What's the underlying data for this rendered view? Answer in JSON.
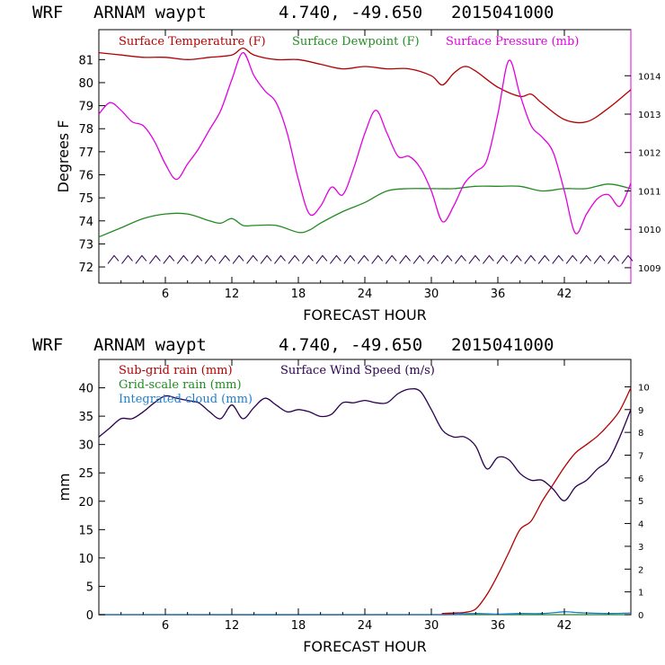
{
  "titles": {
    "top": {
      "model": "WRF",
      "station": "ARNAM waypt",
      "coords": "4.740, -49.650",
      "date": "2015041000"
    },
    "bottom": {
      "model": "WRF",
      "station": "ARNAM waypt",
      "coords": "4.740, -49.650",
      "date": "2015041000"
    }
  },
  "colors": {
    "temperature": "#b30000",
    "dewpoint": "#228b22",
    "pressure": "#e000e0",
    "wind": "#2a0050",
    "wind_barbs": "#2a0050",
    "subgrid": "#b30000",
    "gridscale": "#228b22",
    "cloud": "#1e7fd0"
  },
  "chart_data": [
    {
      "type": "line",
      "xlabel": "FORECAST HOUR",
      "ylabel": "Degrees F",
      "xlim": [
        0,
        48
      ],
      "x_ticks": [
        "6",
        "12",
        "18",
        "24",
        "30",
        "36",
        "42"
      ],
      "ylim": [
        71.3,
        82.3
      ],
      "y_ticks": [
        "72",
        "73",
        "74",
        "75",
        "76",
        "77",
        "78",
        "79",
        "80",
        "81"
      ],
      "y2lim": [
        1008.6,
        1015.2
      ],
      "y2_ticks": [
        "1009",
        "1010",
        "1011",
        "1012",
        "1013",
        "1014"
      ],
      "legend_placement": "top-left",
      "series": [
        {
          "name": "Surface Temperature (F)",
          "axis": "left",
          "color_key": "temperature",
          "x": [
            0,
            2,
            4,
            6,
            8,
            10,
            12,
            13,
            14,
            16,
            18,
            20,
            22,
            24,
            26,
            28,
            30,
            31,
            32,
            33,
            34,
            36,
            38,
            39,
            40,
            42,
            44,
            46,
            48
          ],
          "values": [
            81.3,
            81.2,
            81.1,
            81.1,
            81.0,
            81.1,
            81.2,
            81.5,
            81.2,
            81.0,
            81.0,
            80.8,
            80.6,
            80.7,
            80.6,
            80.6,
            80.3,
            79.9,
            80.4,
            80.7,
            80.5,
            79.8,
            79.4,
            79.5,
            79.1,
            78.4,
            78.3,
            78.9,
            79.7
          ]
        },
        {
          "name": "Surface Dewpoint (F)",
          "axis": "left",
          "color_key": "dewpoint",
          "x": [
            0,
            2,
            4,
            6,
            8,
            10,
            11,
            12,
            13,
            14,
            16,
            18,
            19,
            20,
            22,
            24,
            26,
            28,
            30,
            32,
            34,
            36,
            38,
            40,
            42,
            44,
            46,
            48
          ],
          "values": [
            73.3,
            73.7,
            74.1,
            74.3,
            74.3,
            74.0,
            73.9,
            74.1,
            73.8,
            73.8,
            73.8,
            73.5,
            73.6,
            73.9,
            74.4,
            74.8,
            75.3,
            75.4,
            75.4,
            75.4,
            75.5,
            75.5,
            75.5,
            75.3,
            75.4,
            75.4,
            75.6,
            75.4
          ]
        },
        {
          "name": "Surface Pressure (mb)",
          "axis": "right",
          "color_key": "pressure",
          "x": [
            0,
            1,
            2,
            3,
            4,
            5,
            6,
            7,
            8,
            9,
            10,
            11,
            12,
            13,
            14,
            15,
            16,
            17,
            18,
            19,
            20,
            21,
            22,
            23,
            24,
            25,
            26,
            27,
            28,
            29,
            30,
            31,
            32,
            33,
            34,
            35,
            36,
            37,
            38,
            39,
            40,
            41,
            42,
            43,
            44,
            45,
            46,
            47,
            48
          ],
          "values": [
            1013.0,
            1013.3,
            1013.1,
            1012.8,
            1012.7,
            1012.3,
            1011.7,
            1011.3,
            1011.7,
            1012.1,
            1012.6,
            1013.1,
            1013.9,
            1014.6,
            1014.0,
            1013.6,
            1013.3,
            1012.5,
            1011.3,
            1010.4,
            1010.6,
            1011.1,
            1010.9,
            1011.6,
            1012.5,
            1013.1,
            1012.5,
            1011.9,
            1011.9,
            1011.6,
            1011.0,
            1010.2,
            1010.6,
            1011.2,
            1011.5,
            1011.8,
            1013.0,
            1014.4,
            1013.5,
            1012.7,
            1012.4,
            1012.0,
            1011.0,
            1009.9,
            1010.4,
            1010.8,
            1010.9,
            1010.6,
            1011.2
          ]
        }
      ],
      "wind_barbs": {
        "color_key": "wind_barbs",
        "y": 72.3,
        "count": 38
      }
    },
    {
      "type": "line",
      "xlabel": "FORECAST HOUR",
      "ylabel": "mm",
      "xlim": [
        0,
        48
      ],
      "x_ticks": [
        "6",
        "12",
        "18",
        "24",
        "30",
        "36",
        "42"
      ],
      "ylim": [
        0,
        45
      ],
      "y_ticks": [
        "0",
        "5",
        "10",
        "15",
        "20",
        "25",
        "30",
        "35",
        "40"
      ],
      "y2lim": [
        0,
        11.2
      ],
      "y2_ticks": [
        "0",
        "1",
        "2",
        "3",
        "4",
        "5",
        "6",
        "7",
        "8",
        "9",
        "10"
      ],
      "legend_placement": "top-left",
      "series": [
        {
          "name": "Sub-grid rain (mm)",
          "axis": "left",
          "color_key": "subgrid",
          "x": [
            0,
            30,
            31,
            32,
            33,
            34,
            35,
            36,
            37,
            38,
            39,
            40,
            41,
            42,
            43,
            44,
            45,
            46,
            47,
            48
          ],
          "values": [
            0,
            0,
            0.2,
            0.3,
            0.4,
            1.0,
            3.5,
            7.0,
            11.0,
            15.0,
            16.5,
            20.0,
            23.0,
            26.0,
            28.5,
            30.0,
            31.5,
            33.5,
            36.0,
            40.0
          ]
        },
        {
          "name": "Grid-scale rain (mm)",
          "axis": "left",
          "color_key": "gridscale",
          "x": [
            0,
            48
          ],
          "values": [
            0,
            0
          ]
        },
        {
          "name": "Integrated cloud (mm)",
          "axis": "left",
          "color_key": "cloud",
          "x": [
            0,
            30,
            32,
            34,
            36,
            38,
            40,
            42,
            43,
            44,
            46,
            48
          ],
          "values": [
            0,
            0,
            0.1,
            0.2,
            0.1,
            0.2,
            0.2,
            0.5,
            0.4,
            0.3,
            0.2,
            0.3
          ]
        },
        {
          "name": "Surface Wind Speed (m/s)",
          "axis": "right",
          "color_key": "wind",
          "x": [
            0,
            1,
            2,
            3,
            4,
            5,
            6,
            7,
            8,
            9,
            10,
            11,
            12,
            13,
            14,
            15,
            16,
            17,
            18,
            19,
            20,
            21,
            22,
            23,
            24,
            25,
            26,
            27,
            28,
            29,
            30,
            31,
            32,
            33,
            34,
            35,
            36,
            37,
            38,
            39,
            40,
            41,
            42,
            43,
            44,
            45,
            46,
            47,
            48
          ],
          "values": [
            7.8,
            8.2,
            8.6,
            8.6,
            8.9,
            9.3,
            9.6,
            9.5,
            9.4,
            9.3,
            8.9,
            8.6,
            9.2,
            8.6,
            9.1,
            9.5,
            9.2,
            8.9,
            9.0,
            8.9,
            8.7,
            8.8,
            9.3,
            9.3,
            9.4,
            9.3,
            9.3,
            9.7,
            9.9,
            9.8,
            9.0,
            8.1,
            7.8,
            7.8,
            7.4,
            6.4,
            6.9,
            6.8,
            6.2,
            5.9,
            5.9,
            5.5,
            5.0,
            5.6,
            5.9,
            6.4,
            6.8,
            7.8,
            9.0
          ]
        }
      ]
    }
  ]
}
